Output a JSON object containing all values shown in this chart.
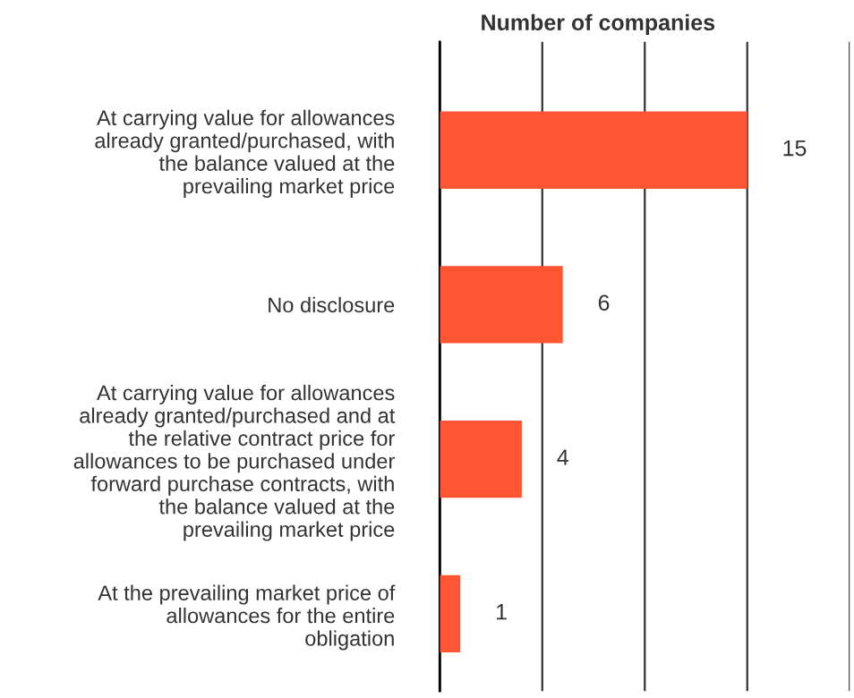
{
  "chart_data": {
    "type": "bar",
    "orientation": "horizontal",
    "title": "Number of companies",
    "categories": [
      "At carrying value for allowances\nalready granted/purchased, with\nthe balance valued at the\nprevailing market price",
      "No disclosure",
      "At carrying value for allowances\nalready granted/purchased and at\nthe relative contract price for\nallowances to be purchased under\nforward purchase contracts, with\nthe balance valued at the\nprevailing market price",
      "At the prevailing market price of\nallowances for the entire\nobligation"
    ],
    "values": [
      15,
      6,
      4,
      1
    ],
    "color": "#ff5533",
    "data_labels": true,
    "xlim": [
      0,
      20
    ],
    "xticks": [
      {
        "value": 0,
        "label": null
      },
      {
        "value": 5,
        "label": null
      },
      {
        "value": 10,
        "label": null
      },
      {
        "value": 15,
        "label": null
      },
      {
        "value": 20,
        "label": null
      }
    ],
    "grid": "x",
    "tick_labels": "y"
  }
}
